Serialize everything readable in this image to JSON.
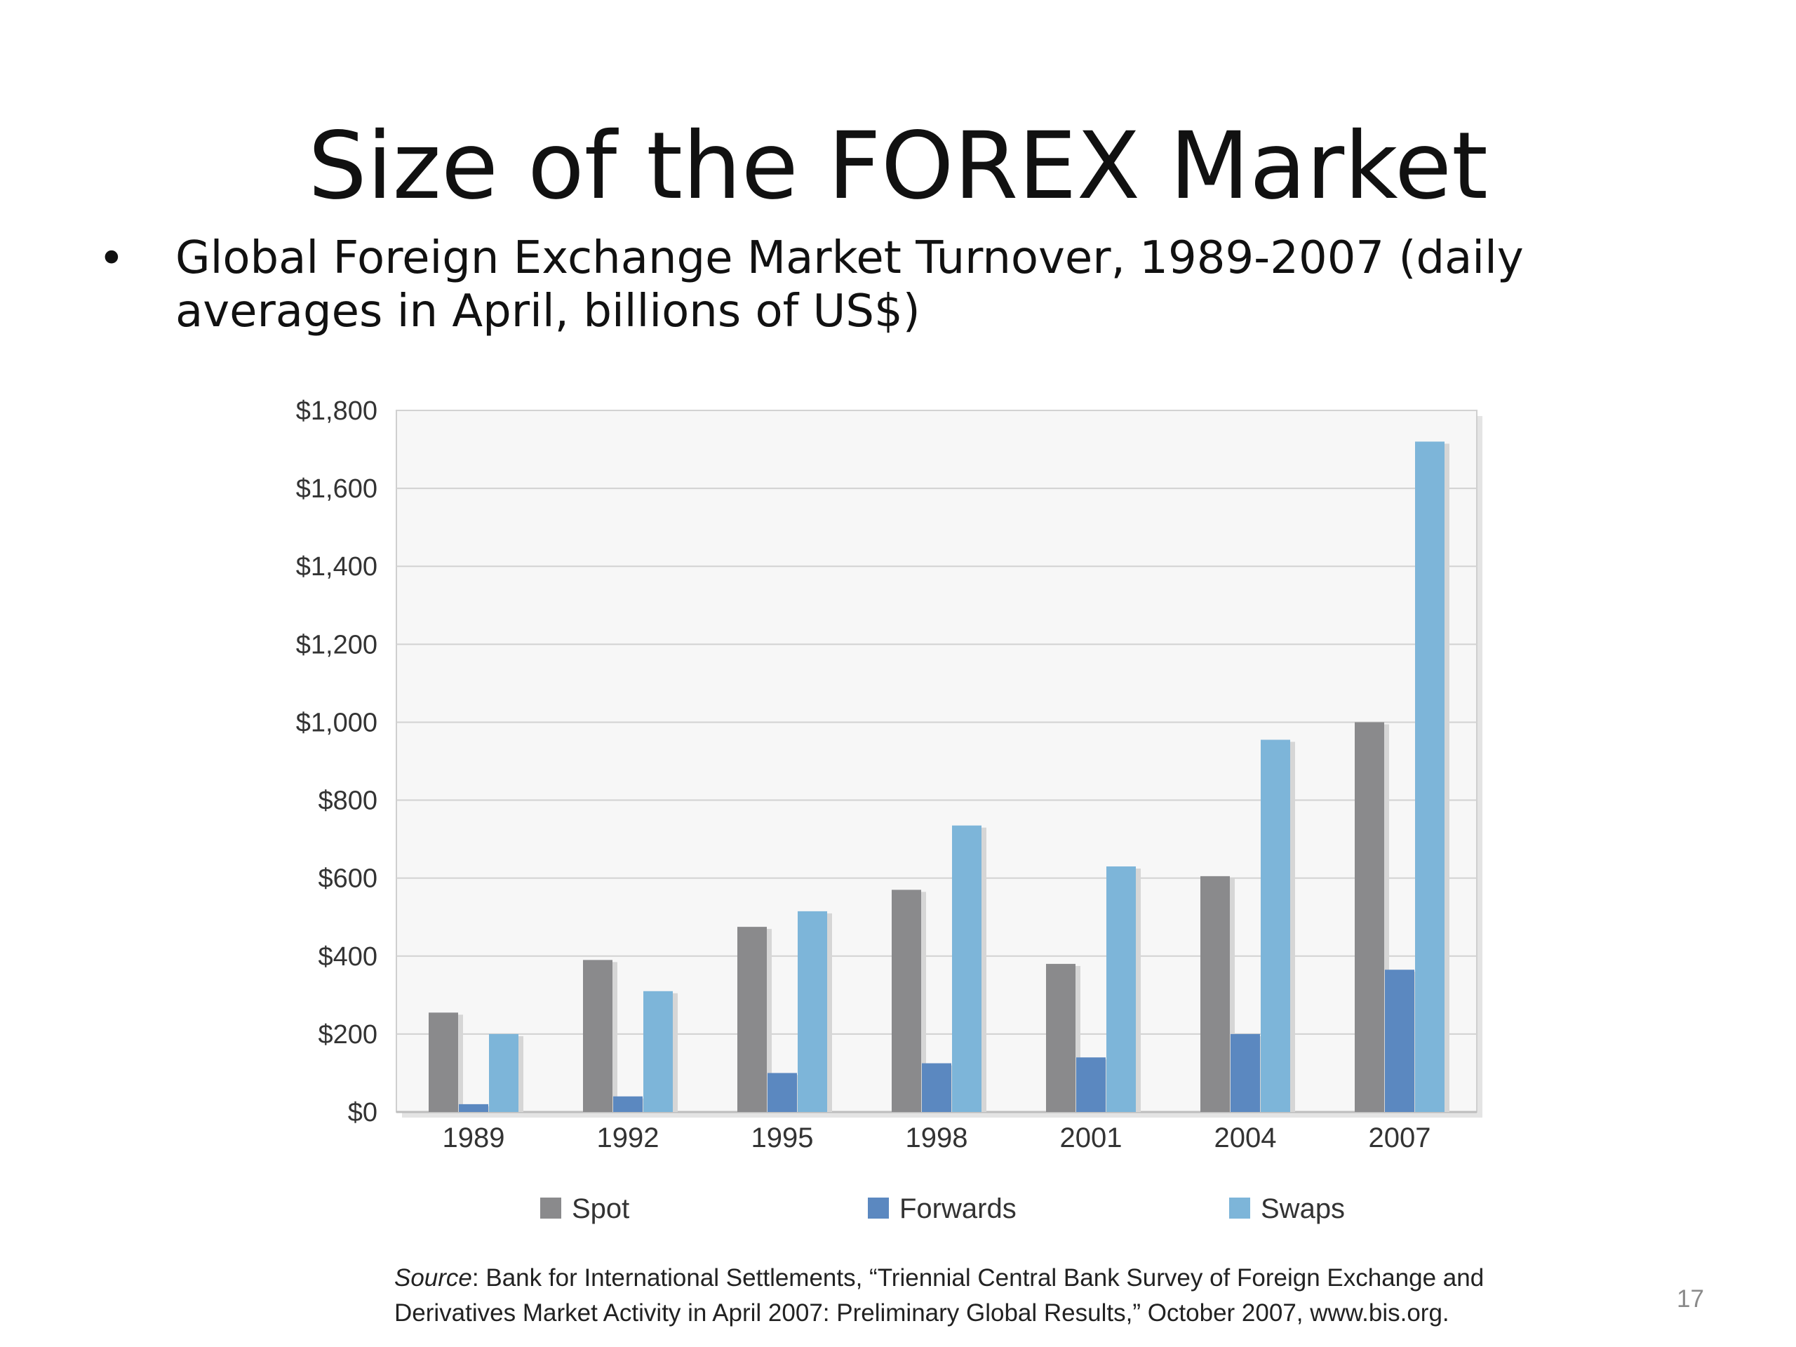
{
  "slide": {
    "title": "Size of the FOREX Market",
    "bullet": "Global Foreign Exchange Market Turnover, 1989-2007 (daily averages in April, billions of US$)",
    "source_label": "Source",
    "source_text": "Bank for International Settlements, “Triennial Central Bank Survey of Foreign Exchange and Derivatives Market Activity in April 2007: Preliminary Global Results,” October 2007, www.bis.org.",
    "page_number": "17"
  },
  "chart_data": {
    "type": "bar",
    "categories": [
      "1989",
      "1992",
      "1995",
      "1998",
      "2001",
      "2004",
      "2007"
    ],
    "series": [
      {
        "name": "Spot",
        "color": "#8a8a8c",
        "values": [
          255,
          390,
          475,
          570,
          380,
          605,
          1000
        ]
      },
      {
        "name": "Forwards",
        "color": "#5b88c0",
        "values": [
          20,
          40,
          100,
          125,
          140,
          200,
          365
        ]
      },
      {
        "name": "Swaps",
        "color": "#7db5d9",
        "values": [
          200,
          310,
          515,
          735,
          630,
          955,
          1720
        ]
      }
    ],
    "yticks": [
      "$0",
      "$200",
      "$400",
      "$600",
      "$800",
      "$1,000",
      "$1,200",
      "$1,400",
      "$1,600",
      "$1,800"
    ],
    "ylim": [
      0,
      1800
    ],
    "grid": true,
    "legend_position": "bottom",
    "title": "",
    "xlabel": "",
    "ylabel": ""
  }
}
